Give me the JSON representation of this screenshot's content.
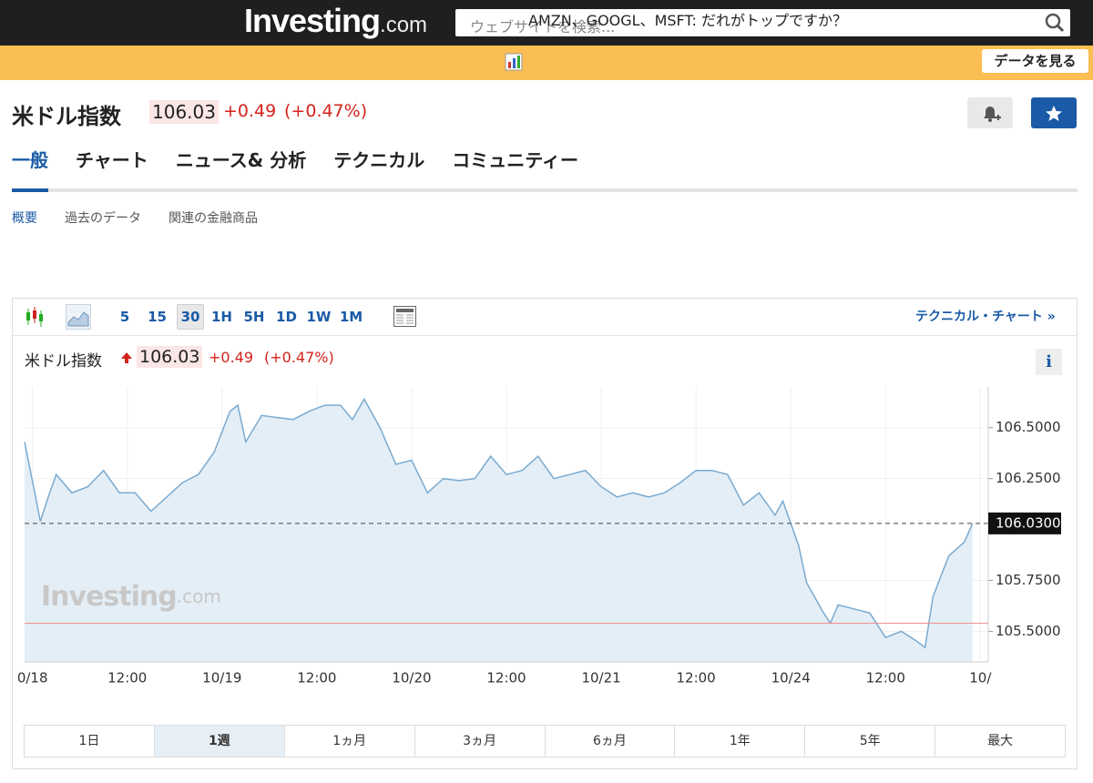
{
  "header": {
    "logo": "Investing",
    "logo_suffix": ".com",
    "search_placeholder": "ウェブサイトを検索..."
  },
  "banner": {
    "text": "AMZN、GOOGL、MSFT: だれがトップですか？",
    "button": "データを見る"
  },
  "quote": {
    "name": "米ドル指数",
    "price": "106.03",
    "change": "+0.49",
    "change_pct": "(+0.47%)"
  },
  "tabs": {
    "items": [
      "一般",
      "チャート",
      "ニュース& 分析",
      "テクニカル",
      "コミュニティー"
    ],
    "active": 0
  },
  "subtabs": {
    "items": [
      "概要",
      "過去のデータ",
      "関連の金融商品"
    ],
    "active": 0
  },
  "toolbar": {
    "intervals": [
      "5",
      "15",
      "30",
      "1H",
      "5H",
      "1D",
      "1W",
      "1M"
    ],
    "active": 2,
    "technical_link": "テクニカル・チャート »"
  },
  "chart_data": {
    "type": "line",
    "title": "米ドル指数",
    "price": "106.03",
    "change": "+0.49",
    "change_pct": "(+0.47%)",
    "info": "i",
    "watermark": "Investing",
    "watermark_suffix": ".com",
    "color": "#7aaad0",
    "fill": "#e4eef6",
    "grid": true,
    "x": [
      -1,
      0.5,
      1,
      2,
      3,
      5,
      7,
      9,
      11,
      13,
      15,
      17,
      19,
      21,
      23,
      25,
      26,
      27,
      29,
      31,
      33,
      35,
      37,
      39,
      40.5,
      42,
      44,
      46,
      48,
      50,
      52,
      54,
      56,
      58,
      60,
      62,
      64,
      66,
      68,
      70,
      72,
      74,
      76,
      78,
      80,
      82,
      84,
      86,
      88,
      90,
      92,
      94,
      95,
      96,
      97,
      98,
      100,
      101,
      102,
      104,
      106,
      108,
      110,
      112,
      113,
      114,
      116,
      118,
      119
    ],
    "values": [
      106.43,
      106.14,
      106.04,
      106.16,
      106.27,
      106.18,
      106.21,
      106.29,
      106.18,
      106.18,
      106.09,
      106.16,
      106.23,
      106.27,
      106.38,
      106.58,
      106.61,
      106.43,
      106.56,
      106.55,
      106.54,
      106.58,
      106.61,
      106.61,
      106.54,
      106.64,
      106.5,
      106.32,
      106.34,
      106.18,
      106.25,
      106.24,
      106.25,
      106.36,
      106.27,
      106.29,
      106.36,
      106.25,
      106.27,
      106.29,
      106.21,
      106.16,
      106.18,
      106.16,
      106.18,
      106.23,
      106.29,
      106.29,
      106.27,
      106.12,
      106.18,
      106.07,
      106.14,
      106.03,
      105.92,
      105.74,
      105.6,
      105.54,
      105.63,
      105.61,
      105.59,
      105.47,
      105.5,
      105.45,
      105.42,
      105.67,
      105.87,
      105.94,
      106.03
    ],
    "xlim": [
      -1,
      121
    ],
    "xticks": [
      {
        "value": 0,
        "label": "0/18"
      },
      {
        "value": 12,
        "label": "12:00"
      },
      {
        "value": 24,
        "label": "10/19"
      },
      {
        "value": 36,
        "label": "12:00"
      },
      {
        "value": 48,
        "label": "10/20"
      },
      {
        "value": 60,
        "label": "12:00"
      },
      {
        "value": 72,
        "label": "10/21"
      },
      {
        "value": 84,
        "label": "12:00"
      },
      {
        "value": 96,
        "label": "10/24"
      },
      {
        "value": 108,
        "label": "12:00"
      },
      {
        "value": 120,
        "label": "10/"
      }
    ],
    "ylim": [
      105.35,
      106.7
    ],
    "yticks": [
      {
        "value": 105.5,
        "label": "105.5000"
      },
      {
        "value": 105.75,
        "label": "105.7500"
      },
      {
        "value": 106.25,
        "label": "106.2500"
      },
      {
        "value": 106.5,
        "label": "106.5000"
      }
    ],
    "last_price": {
      "value": 106.03,
      "label": "106.0300"
    },
    "reference_line": 105.54
  },
  "ranges": {
    "items": [
      "1日",
      "1週",
      "1ヵ月",
      "3ヵ月",
      "6ヵ月",
      "1年",
      "5年",
      "最大"
    ],
    "active": 1
  }
}
